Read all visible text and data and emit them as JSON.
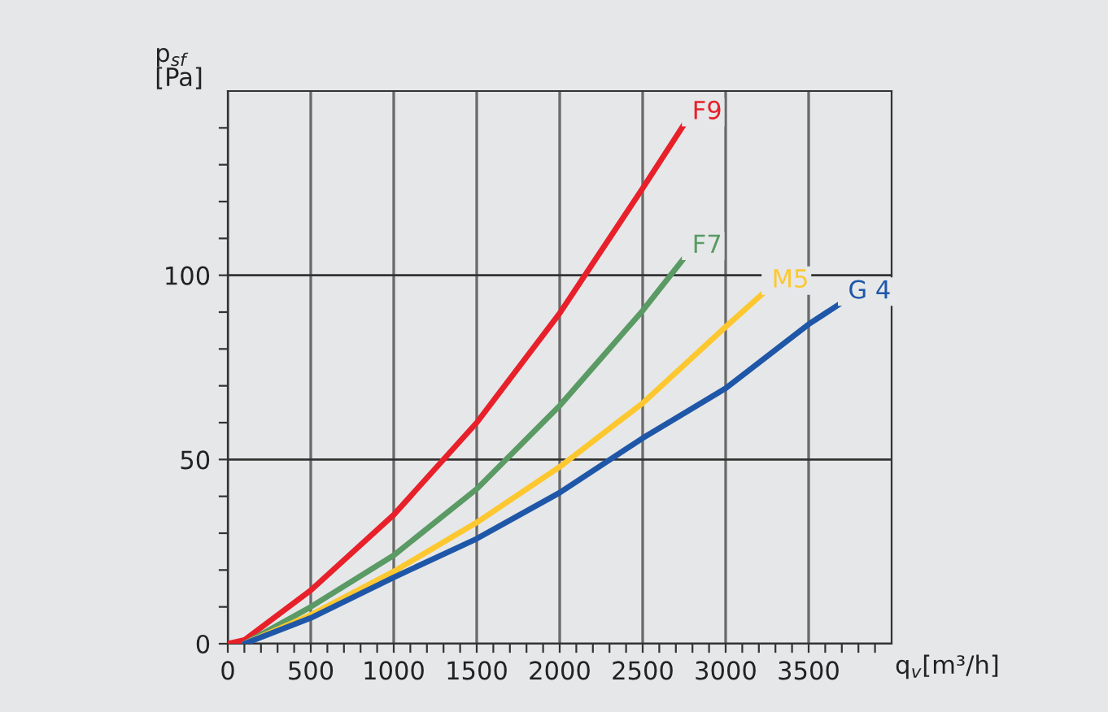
{
  "chart_data": {
    "type": "line",
    "xlabel": "q$_{v}$[m³/h]",
    "ylabel": "p$_{sf}$\n[Pa]",
    "legend": false,
    "grid": true,
    "marker": "none",
    "line_style": "solid",
    "xlim": [
      0,
      4000
    ],
    "ylim": [
      0,
      150
    ],
    "xticks": [
      0,
      {
        "value": 100,
        "label": null
      },
      {
        "value": 200,
        "label": null
      },
      {
        "value": 300,
        "label": null
      },
      {
        "value": 400,
        "label": null
      },
      500,
      {
        "value": 600,
        "label": null
      },
      {
        "value": 700,
        "label": null
      },
      {
        "value": 800,
        "label": null
      },
      {
        "value": 900,
        "label": null
      },
      1000,
      {
        "value": 1100,
        "label": null
      },
      {
        "value": 1200,
        "label": null
      },
      {
        "value": 1300,
        "label": null
      },
      {
        "value": 1400,
        "label": null
      },
      1500,
      {
        "value": 1600,
        "label": null
      },
      {
        "value": 1700,
        "label": null
      },
      {
        "value": 1800,
        "label": null
      },
      {
        "value": 1900,
        "label": null
      },
      2000,
      {
        "value": 2100,
        "label": null
      },
      {
        "value": 2200,
        "label": null
      },
      {
        "value": 2300,
        "label": null
      },
      {
        "value": 2400,
        "label": null
      },
      2500,
      {
        "value": 2600,
        "label": null
      },
      {
        "value": 2700,
        "label": null
      },
      {
        "value": 2800,
        "label": null
      },
      {
        "value": 2900,
        "label": null
      },
      3000,
      {
        "value": 3100,
        "label": null
      },
      {
        "value": 3200,
        "label": null
      },
      {
        "value": 3300,
        "label": null
      },
      {
        "value": 3400,
        "label": null
      },
      3500,
      {
        "value": 3600,
        "label": null
      },
      {
        "value": 3700,
        "label": null
      },
      {
        "value": 3800,
        "label": null
      },
      {
        "value": 3900,
        "label": null
      }
    ],
    "yticks": [
      0,
      {
        "value": 10,
        "label": null
      },
      {
        "value": 20,
        "label": null
      },
      {
        "value": 30,
        "label": null
      },
      {
        "value": 40,
        "label": null
      },
      50,
      {
        "value": 60,
        "label": null
      },
      {
        "value": 70,
        "label": null
      },
      {
        "value": 80,
        "label": null
      },
      {
        "value": 90,
        "label": null
      },
      100,
      {
        "value": 110,
        "label": null
      },
      {
        "value": 120,
        "label": null
      },
      {
        "value": 130,
        "label": null
      },
      {
        "value": 140,
        "label": null
      }
    ],
    "series": [
      {
        "name": "F9",
        "color": "#e8202a",
        "x": [
          0,
          100,
          500,
          1000,
          1500,
          2000,
          2500,
          2750
        ],
        "values": [
          0,
          1,
          14.5,
          35,
          60,
          89.7,
          123.6,
          141
        ]
      },
      {
        "name": "F7",
        "color": "#5a9a64",
        "x": [
          100,
          500,
          1000,
          1500,
          2000,
          2500,
          2750
        ],
        "values": [
          0,
          10,
          24,
          42,
          64.6,
          90.4,
          104.7
        ]
      },
      {
        "name": "M5",
        "color": "#fdc82f",
        "x": [
          100,
          500,
          1000,
          1500,
          2000,
          2500,
          3000,
          3230
        ],
        "values": [
          0,
          7.8,
          19.6,
          32.9,
          48,
          65.3,
          86,
          95.3
        ]
      },
      {
        "name": "G 4",
        "color": "#1f57a8",
        "x": [
          100,
          500,
          1000,
          1500,
          2000,
          2500,
          3000,
          3500,
          3690
        ],
        "values": [
          0,
          7,
          18,
          28.5,
          41,
          55.8,
          69.3,
          86.7,
          92.3
        ]
      }
    ]
  }
}
